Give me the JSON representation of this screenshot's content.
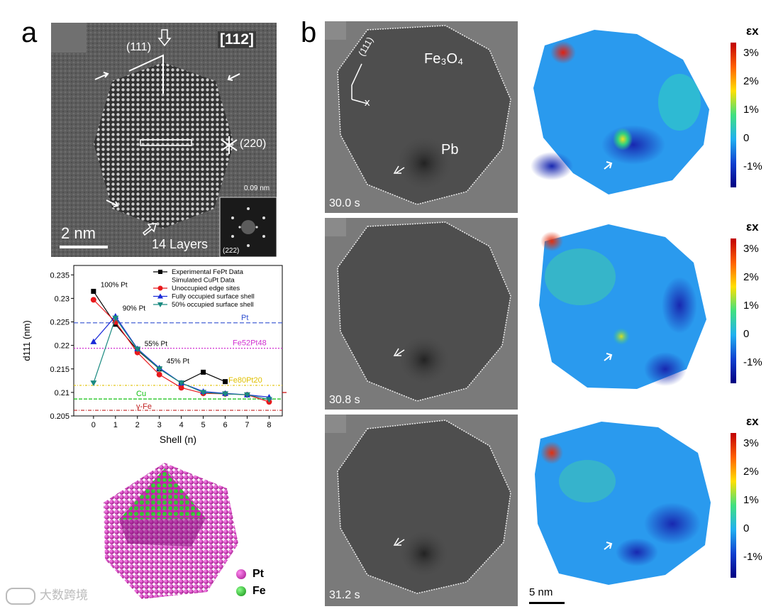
{
  "panel_a": {
    "letter": "a",
    "hrtem": {
      "zone_axis": "[112]",
      "label_111": "(111)",
      "label_220": "(220)",
      "layers": "14 Layers",
      "scale_bar": "2 nm",
      "fft_top": "0.09 nm",
      "fft_bottom": "(222)"
    },
    "atom_legend": [
      {
        "label": "Pt",
        "color": "#e020c8"
      },
      {
        "label": "Fe",
        "color": "#22cc22"
      }
    ]
  },
  "panel_b": {
    "letter": "b",
    "frames": [
      {
        "time": "30.0 s"
      },
      {
        "time": "30.8 s"
      },
      {
        "time": "31.2 s"
      }
    ],
    "labels": {
      "matrix": "Fe₃O₄",
      "inclusion": "Pb",
      "axis_111": "(111)",
      "axis_x": "x"
    },
    "colorbar": {
      "title": "εx",
      "ticks": [
        "3%",
        "2%",
        "1%",
        "0",
        "-1%"
      ]
    },
    "scale_bar": "5 nm"
  },
  "chart_data": {
    "type": "line",
    "xlabel": "Shell (n)",
    "ylabel": "d111 (nm)",
    "ylim": [
      0.205,
      0.237
    ],
    "xlim": [
      -0.9,
      8.6
    ],
    "x_ticks": [
      0,
      1,
      2,
      3,
      4,
      5,
      6,
      7,
      8
    ],
    "y_ticks": [
      0.205,
      0.21,
      0.215,
      0.22,
      0.225,
      0.23,
      0.235
    ],
    "series": [
      {
        "name": "Experimental FePt Data",
        "color": "#000000",
        "marker": "square",
        "x": [
          0,
          1,
          2,
          3,
          4,
          5,
          6
        ],
        "y": [
          0.2315,
          0.2245,
          0.219,
          0.215,
          0.212,
          0.2143,
          0.2123
        ]
      },
      {
        "name": "Unoccupied edge sites",
        "color": "#e8191c",
        "marker": "circle",
        "x": [
          0,
          1,
          2,
          3,
          4,
          5,
          6,
          7,
          8
        ],
        "y": [
          0.2297,
          0.225,
          0.2185,
          0.2138,
          0.211,
          0.2098,
          0.2097,
          0.2095,
          0.208
        ]
      },
      {
        "name": "Fully occupied surface shell",
        "color": "#1a2ad8",
        "marker": "triangle-up",
        "x": [
          0,
          1,
          2,
          3,
          4,
          5,
          6,
          7,
          8
        ],
        "y": [
          0.2208,
          0.2262,
          0.2193,
          0.2152,
          0.212,
          0.2102,
          0.2098,
          0.2095,
          0.209
        ]
      },
      {
        "name": "50% occupied surface shell",
        "color": "#1a8a80",
        "marker": "triangle-down",
        "x": [
          0,
          1,
          2,
          3,
          4,
          5,
          6,
          7,
          8
        ],
        "y": [
          0.212,
          0.2258,
          0.2192,
          0.215,
          0.212,
          0.21,
          0.2097,
          0.2095,
          0.2085
        ]
      }
    ],
    "legend_extra": "Simulated CuPt Data",
    "reference_lines": [
      {
        "label": "Pt",
        "y": 0.2248,
        "color": "#3050d0"
      },
      {
        "label": "Fe52Pt48",
        "y": 0.2194,
        "color": "#d030d0"
      },
      {
        "label": "Fe80Pt20",
        "y": 0.2115,
        "color": "#e0c000"
      },
      {
        "label": "Cu",
        "y": 0.2086,
        "color": "#10c010"
      },
      {
        "label": "γ-Fe",
        "y": 0.2062,
        "color": "#c02020"
      }
    ],
    "annotations": [
      {
        "text": "100% Pt",
        "x": 0,
        "y": 0.2315
      },
      {
        "text": "90% Pt",
        "x": 1,
        "y": 0.2262
      },
      {
        "text": "55% Pt",
        "x": 2,
        "y": 0.219
      },
      {
        "text": "45% Pt",
        "x": 3,
        "y": 0.215
      }
    ]
  },
  "watermark": "大数跨境"
}
